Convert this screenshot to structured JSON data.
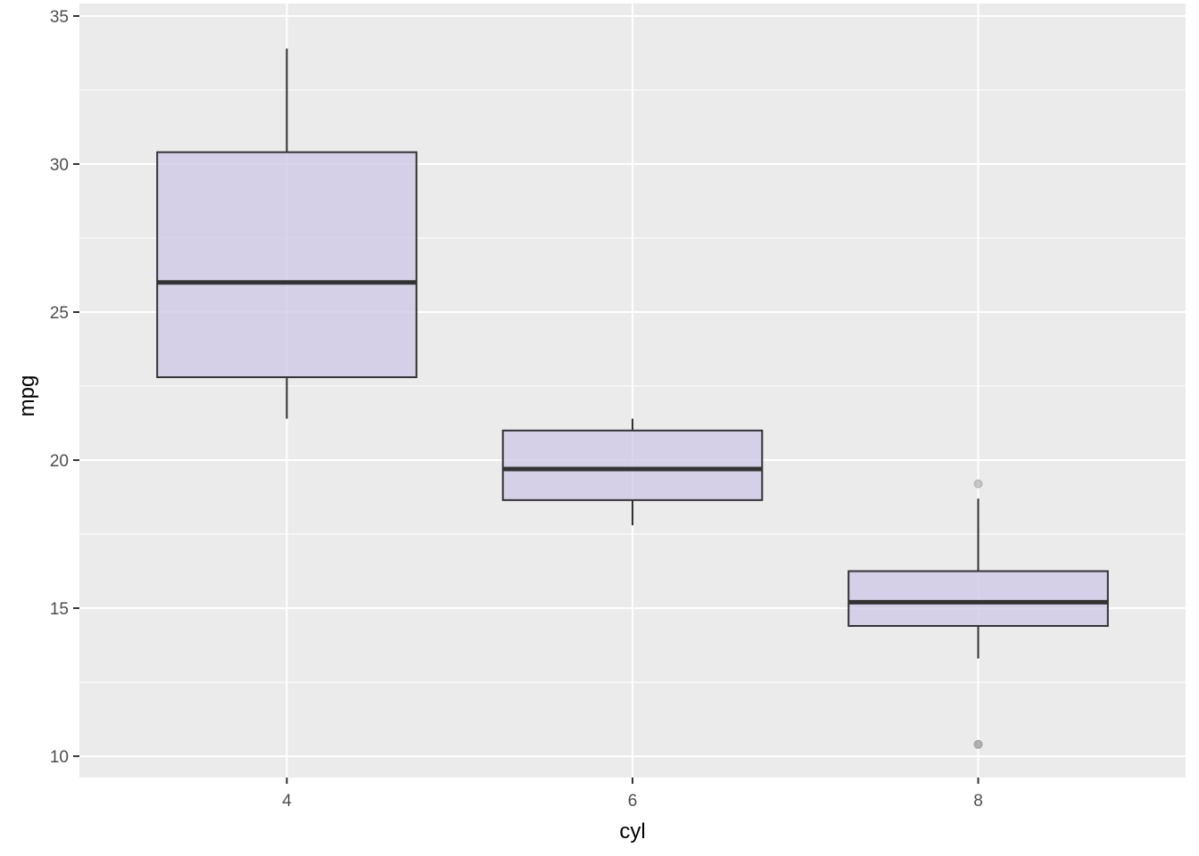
{
  "chart_data": {
    "type": "boxplot",
    "xlabel": "cyl",
    "ylabel": "mpg",
    "categories": [
      "4",
      "6",
      "8"
    ],
    "ylim": [
      9.28,
      35.42
    ],
    "yticks": [
      10,
      15,
      20,
      25,
      30,
      35
    ],
    "grid": true,
    "boxes": [
      {
        "category": "4",
        "lower_whisker": 21.4,
        "q1": 22.8,
        "median": 26.0,
        "q3": 30.4,
        "upper_whisker": 33.9,
        "outliers": []
      },
      {
        "category": "6",
        "lower_whisker": 17.8,
        "q1": 18.65,
        "median": 19.7,
        "q3": 21.0,
        "upper_whisker": 21.4,
        "outliers": []
      },
      {
        "category": "8",
        "lower_whisker": 13.3,
        "q1": 14.4,
        "median": 15.2,
        "q3": 16.25,
        "upper_whisker": 18.7,
        "outliers": [
          10.4,
          10.4,
          19.2
        ]
      }
    ],
    "colors": {
      "panel_background": "#ebebeb",
      "grid": "#ffffff",
      "box_fill": "#cfc8e6",
      "box_stroke": "#333333",
      "outlier": "#999999"
    }
  }
}
